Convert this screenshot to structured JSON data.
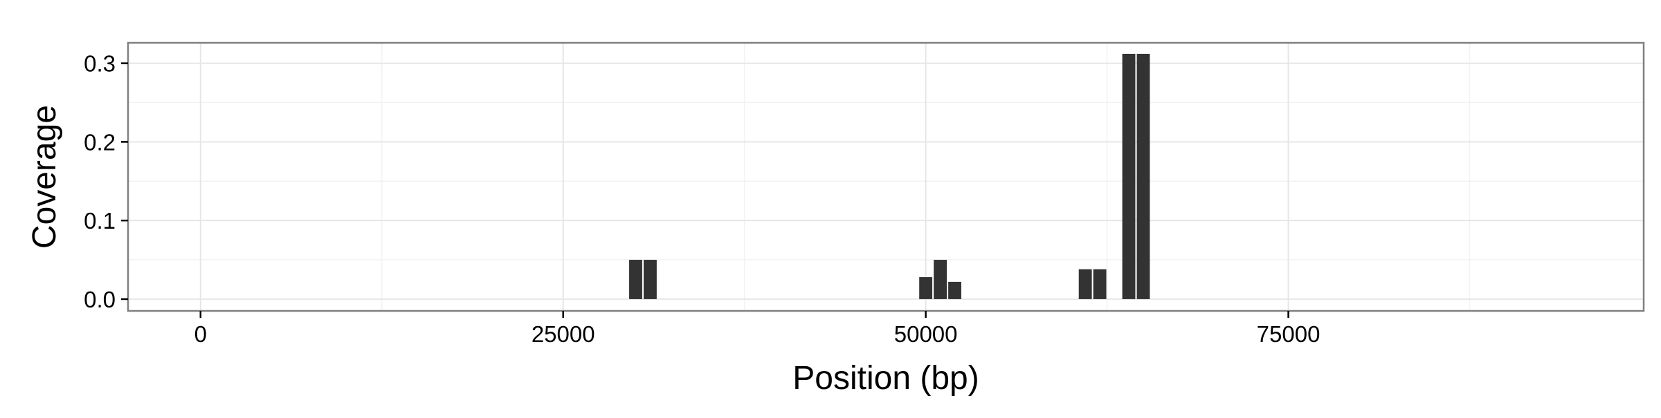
{
  "chart_data": {
    "type": "bar",
    "title": "",
    "xlabel": "Position (bp)",
    "ylabel": "Coverage",
    "xlim": [
      -5000,
      99500
    ],
    "ylim": [
      -0.015,
      0.326
    ],
    "x_ticks": [
      0,
      25000,
      50000,
      75000
    ],
    "x_tick_labels": [
      "0",
      "25000",
      "50000",
      "75000"
    ],
    "y_ticks": [
      0.0,
      0.1,
      0.2,
      0.3
    ],
    "y_tick_labels": [
      "0.0",
      "0.1",
      "0.2",
      "0.3"
    ],
    "bar_width": 900,
    "grid": true,
    "bar_color": "#333333",
    "points": [
      {
        "x": 30000,
        "y": 0.05
      },
      {
        "x": 31000,
        "y": 0.05
      },
      {
        "x": 50000,
        "y": 0.028
      },
      {
        "x": 51000,
        "y": 0.05
      },
      {
        "x": 52000,
        "y": 0.022
      },
      {
        "x": 61000,
        "y": 0.038
      },
      {
        "x": 62000,
        "y": 0.038
      },
      {
        "x": 64000,
        "y": 0.312
      },
      {
        "x": 65000,
        "y": 0.312
      }
    ]
  }
}
